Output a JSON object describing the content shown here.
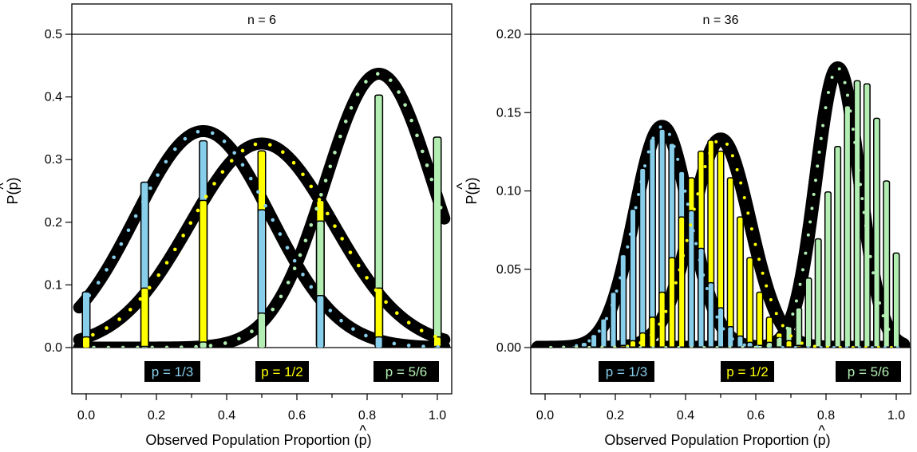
{
  "chart_data": [
    {
      "type": "bar",
      "title": "n = 6",
      "n": 6,
      "xlabel": "Observed Population Proportion",
      "ylabel": "P",
      "hat_symbol": "p",
      "xlim": [
        0,
        1
      ],
      "ylim": [
        0,
        0.5
      ],
      "xticks": [
        "0.0",
        "0.2",
        "0.4",
        "0.6",
        "0.8",
        "1.0"
      ],
      "yticks": [
        "0.0",
        "0.1",
        "0.2",
        "0.3",
        "0.4",
        "0.5"
      ],
      "grid": false,
      "legend_position": "bottom",
      "series": [
        {
          "name": "p = 1/3",
          "color": "#87CEEB",
          "x": [
            0,
            0.1667,
            0.3333,
            0.5,
            0.6667,
            0.8333,
            1.0
          ],
          "values": [
            0.088,
            0.263,
            0.329,
            0.219,
            0.082,
            0.016,
            0.001
          ]
        },
        {
          "name": "p = 1/2",
          "color": "#FFFF00",
          "x": [
            0,
            0.1667,
            0.3333,
            0.5,
            0.6667,
            0.8333,
            1.0
          ],
          "values": [
            0.016,
            0.094,
            0.234,
            0.313,
            0.234,
            0.094,
            0.016
          ]
        },
        {
          "name": "p = 5/6",
          "color": "#B2EEB2",
          "x": [
            0,
            0.1667,
            0.3333,
            0.5,
            0.6667,
            0.8333,
            1.0
          ],
          "values": [
            0.0,
            0.001,
            0.008,
            0.054,
            0.201,
            0.402,
            0.335
          ]
        }
      ]
    },
    {
      "type": "bar",
      "title": "n = 36",
      "n": 36,
      "xlabel": "Observed Population Proportion",
      "ylabel": "P",
      "hat_symbol": "p",
      "xlim": [
        0,
        1
      ],
      "ylim": [
        0,
        0.2
      ],
      "xticks": [
        "0.0",
        "0.2",
        "0.4",
        "0.6",
        "0.8",
        "1.0"
      ],
      "yticks": [
        "0.00",
        "0.05",
        "0.10",
        "0.15",
        "0.20"
      ],
      "grid": false,
      "legend_position": "bottom",
      "series": [
        {
          "name": "p = 1/3",
          "color": "#87CEEB",
          "x": [
            0.0,
            0.0278,
            0.0556,
            0.0833,
            0.1111,
            0.1389,
            0.1667,
            0.1944,
            0.2222,
            0.25,
            0.2778,
            0.3056,
            0.3333,
            0.3611,
            0.3889,
            0.4167,
            0.4444,
            0.4722,
            0.5,
            0.5278,
            0.5556,
            0.5833,
            0.6111,
            0.6389,
            0.6667,
            0.6944,
            0.7222,
            0.75,
            0.7778,
            0.8056,
            0.8333,
            0.8611,
            0.8889,
            0.9167,
            0.9444,
            0.9722,
            1.0
          ],
          "values": [
            0.0,
            0.0,
            0.0,
            0.001,
            0.003,
            0.008,
            0.018,
            0.035,
            0.059,
            0.088,
            0.114,
            0.133,
            0.139,
            0.13,
            0.112,
            0.087,
            0.063,
            0.041,
            0.025,
            0.013,
            0.007,
            0.003,
            0.001,
            0.0,
            0.0,
            0.0,
            0.0,
            0.0,
            0.0,
            0.0,
            0.0,
            0.0,
            0.0,
            0.0,
            0.0,
            0.0,
            0.0
          ]
        },
        {
          "name": "p = 1/2",
          "color": "#FFFF00",
          "x": [
            0.0,
            0.0278,
            0.0556,
            0.0833,
            0.1111,
            0.1389,
            0.1667,
            0.1944,
            0.2222,
            0.25,
            0.2778,
            0.3056,
            0.3333,
            0.3611,
            0.3889,
            0.4167,
            0.4444,
            0.4722,
            0.5,
            0.5278,
            0.5556,
            0.5833,
            0.6111,
            0.6389,
            0.6667,
            0.6944,
            0.7222,
            0.75,
            0.7778,
            0.8056,
            0.8333,
            0.8611,
            0.8889,
            0.9167,
            0.9444,
            0.9722,
            1.0
          ],
          "values": [
            0.0,
            0.0,
            0.0,
            0.0,
            0.0,
            0.0,
            0.0,
            0.0,
            0.001,
            0.004,
            0.009,
            0.019,
            0.035,
            0.057,
            0.083,
            0.108,
            0.125,
            0.132,
            0.125,
            0.108,
            0.083,
            0.057,
            0.035,
            0.019,
            0.009,
            0.004,
            0.001,
            0.0,
            0.0,
            0.0,
            0.0,
            0.0,
            0.0,
            0.0,
            0.0,
            0.0,
            0.0
          ]
        },
        {
          "name": "p = 5/6",
          "color": "#B2EEB2",
          "x": [
            0.0,
            0.0278,
            0.0556,
            0.0833,
            0.1111,
            0.1389,
            0.1667,
            0.1944,
            0.2222,
            0.25,
            0.2778,
            0.3056,
            0.3333,
            0.3611,
            0.3889,
            0.4167,
            0.4444,
            0.4722,
            0.5,
            0.5278,
            0.5556,
            0.5833,
            0.6111,
            0.6389,
            0.6667,
            0.6944,
            0.7222,
            0.75,
            0.7778,
            0.8056,
            0.8333,
            0.8611,
            0.8889,
            0.9167,
            0.9444,
            0.9722,
            1.0
          ],
          "values": [
            0.0,
            0.0,
            0.0,
            0.0,
            0.0,
            0.0,
            0.0,
            0.0,
            0.0,
            0.0,
            0.0,
            0.0,
            0.0,
            0.0,
            0.0,
            0.0,
            0.0,
            0.0,
            0.0,
            0.0,
            0.0,
            0.0,
            0.001,
            0.003,
            0.006,
            0.013,
            0.025,
            0.044,
            0.069,
            0.099,
            0.128,
            0.154,
            0.17,
            0.168,
            0.146,
            0.106,
            0.06
          ]
        }
      ]
    }
  ]
}
